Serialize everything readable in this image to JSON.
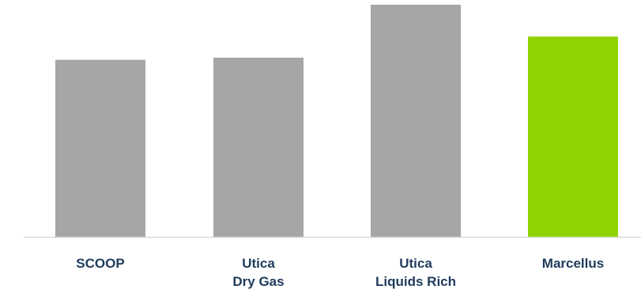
{
  "chart_data": {
    "type": "bar",
    "categories": [
      [
        "SCOOP"
      ],
      [
        "Utica",
        "Dry Gas"
      ],
      [
        "Utica",
        "Liquids Rich"
      ],
      [
        "Marcellus"
      ]
    ],
    "values": [
      0.763,
      0.772,
      1.0,
      0.863
    ],
    "title": "",
    "xlabel": "",
    "ylabel": "",
    "ylim": [
      0,
      1.0
    ],
    "grid": false,
    "legend": "none",
    "bar_colors": [
      "#a6a6a6",
      "#a6a6a6",
      "#a6a6a6",
      "#8fd400"
    ],
    "axis_color": "#d9d9d9",
    "label_color": "#1f3b5c"
  }
}
